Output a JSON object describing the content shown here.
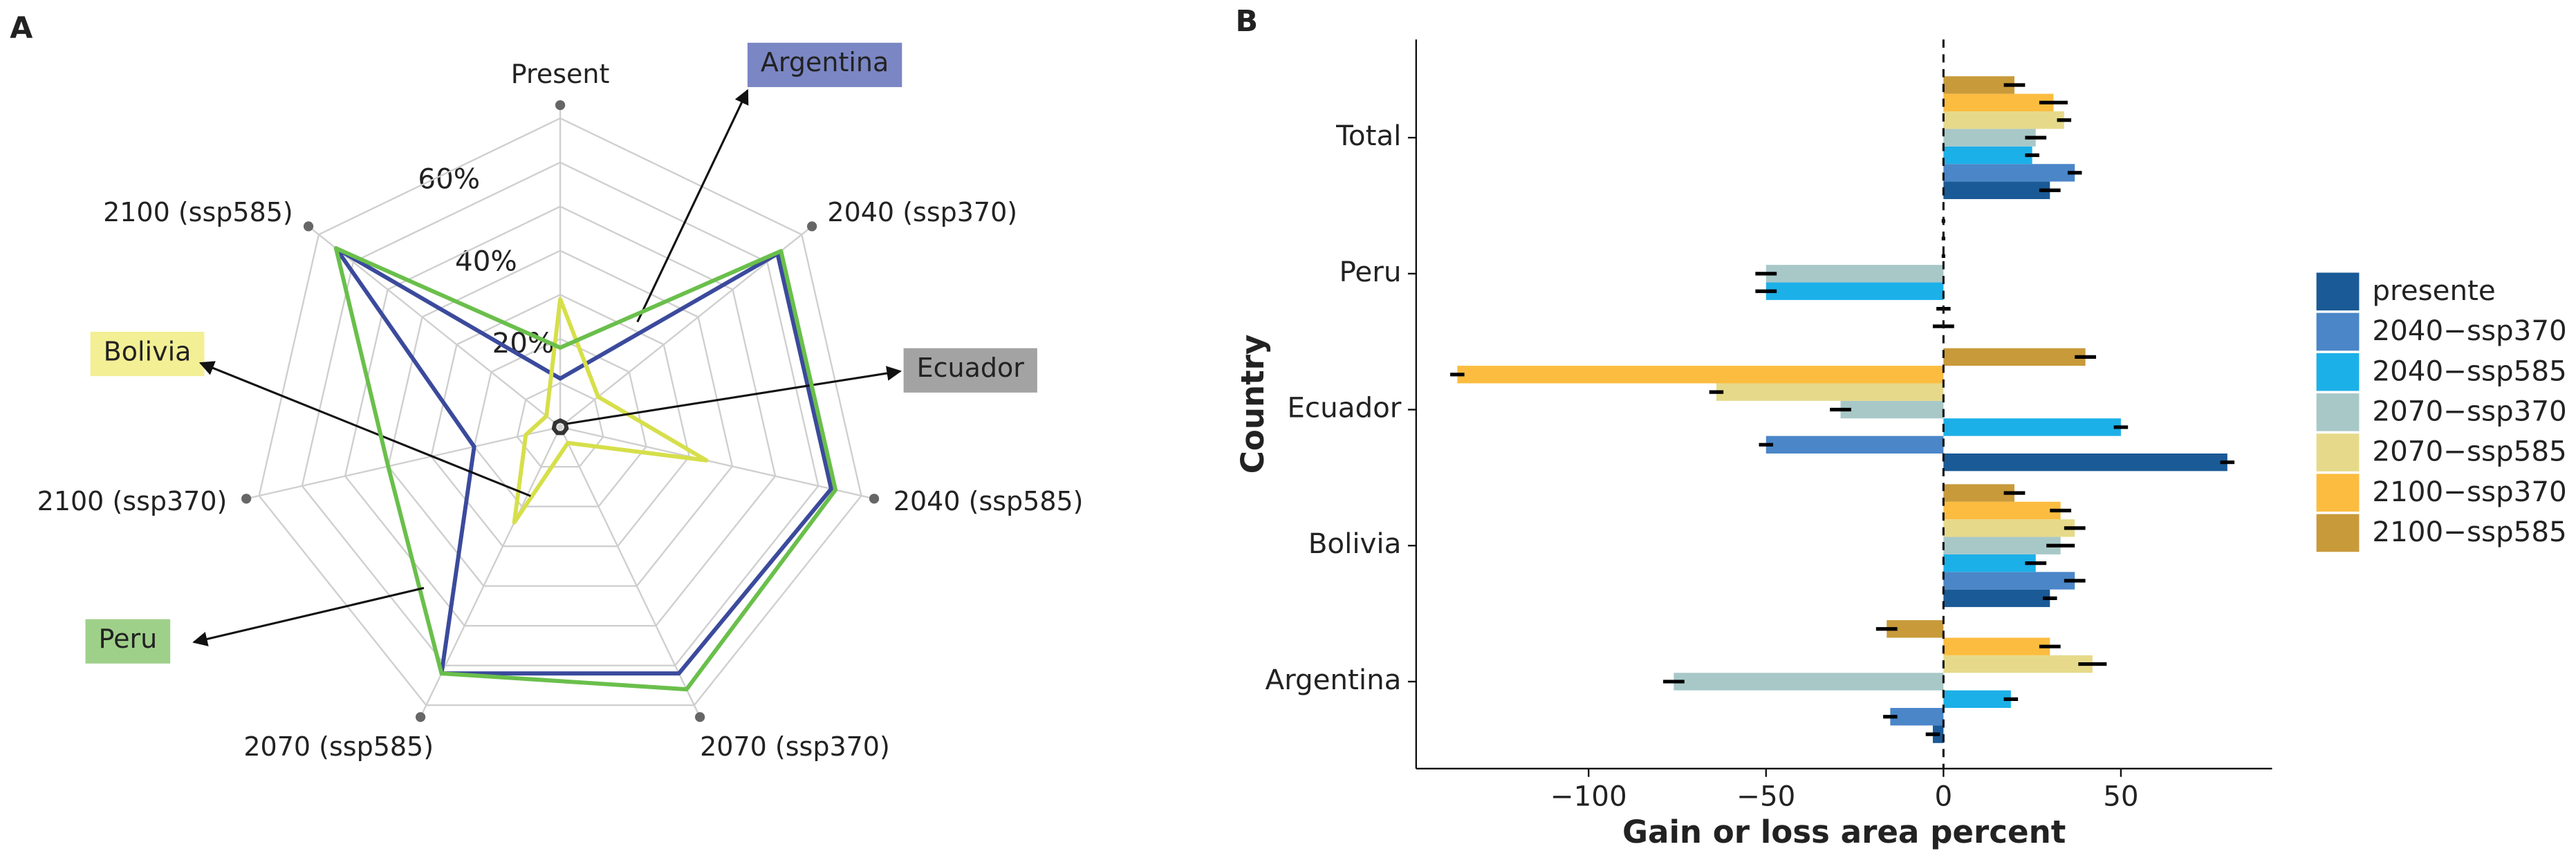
{
  "chart_data": [
    {
      "type": "radar",
      "panel_label": "A",
      "categories": [
        "Present",
        "2040 (ssp370)",
        "2040 (ssp585)",
        "2070 (ssp370)",
        "2070 (ssp585)",
        "2100 (ssp370)",
        "2100 (ssp585)"
      ],
      "rlim": [
        0,
        70
      ],
      "rticks": [
        {
          "value": 10,
          "label": null
        },
        {
          "value": 20,
          "label": "20%"
        },
        {
          "value": 30,
          "label": null
        },
        {
          "value": 40,
          "label": "40%"
        },
        {
          "value": 50,
          "label": null
        },
        {
          "value": 60,
          "label": "60%"
        },
        {
          "value": 70,
          "label": null
        }
      ],
      "series": [
        {
          "name": "Argentina",
          "color": "#3b4a9c",
          "label_color": "#7b86c4",
          "values": [
            11,
            63,
            63,
            62,
            62,
            20,
            65
          ]
        },
        {
          "name": "Bolivia",
          "color": "#d6df4a",
          "label_color": "#f3ef94",
          "values": [
            29,
            11,
            34,
            4,
            24,
            8,
            4
          ]
        },
        {
          "name": "Ecuador",
          "color": "#333333",
          "label_color": "#a3a3a3",
          "values": [
            1.5,
            1.5,
            1.5,
            1.5,
            1.5,
            1.5,
            1.5
          ]
        },
        {
          "name": "Peru",
          "color": "#6abf4b",
          "label_color": "#9fd08a",
          "values": [
            18,
            64,
            64,
            66,
            62,
            40,
            65
          ]
        }
      ]
    },
    {
      "type": "hbar",
      "panel_label": "B",
      "x_label": "Gain or loss area percent",
      "y_label": "Country",
      "categories": [
        "Argentina",
        "Bolivia",
        "Ecuador",
        "Peru",
        "Total"
      ],
      "xlim": [
        -148.6,
        92.6
      ],
      "xticks": [
        {
          "value": -100,
          "label": "−100"
        },
        {
          "value": -50,
          "label": "−50"
        },
        0,
        50
      ],
      "zero_line": "dashed",
      "series": [
        {
          "name": "presente",
          "color": "#1a5a96",
          "values": [
            -3,
            30,
            80,
            0,
            30
          ],
          "errors": [
            2,
            2,
            2,
            3,
            3
          ]
        },
        {
          "name": "2040−ssp370",
          "color": "#4a86c8",
          "values": [
            -15,
            37,
            -50,
            0,
            37
          ],
          "errors": [
            2,
            3,
            2,
            2,
            2
          ]
        },
        {
          "name": "2040−ssp585",
          "color": "#1cb0e8",
          "values": [
            19,
            26,
            50,
            -50,
            25
          ],
          "errors": [
            2,
            3,
            2,
            3,
            2
          ]
        },
        {
          "name": "2070−ssp370",
          "color": "#a8c8c8",
          "values": [
            -76,
            33,
            -29,
            -50,
            26
          ],
          "errors": [
            3,
            4,
            3,
            3,
            3
          ]
        },
        {
          "name": "2070−ssp585",
          "color": "#e6da8a",
          "values": [
            42,
            37,
            -64,
            0,
            34
          ],
          "errors": [
            4,
            3,
            2,
            0.5,
            2
          ]
        },
        {
          "name": "2100−ssp370",
          "color": "#fbbc40",
          "values": [
            30,
            33,
            -137,
            0,
            31
          ],
          "errors": [
            3,
            3,
            2,
            0.5,
            4
          ]
        },
        {
          "name": "2100−ssp585",
          "color": "#c89a3a",
          "values": [
            -16,
            20,
            40,
            0,
            20
          ],
          "errors": [
            3,
            3,
            3,
            0.5,
            3
          ]
        }
      ]
    }
  ]
}
